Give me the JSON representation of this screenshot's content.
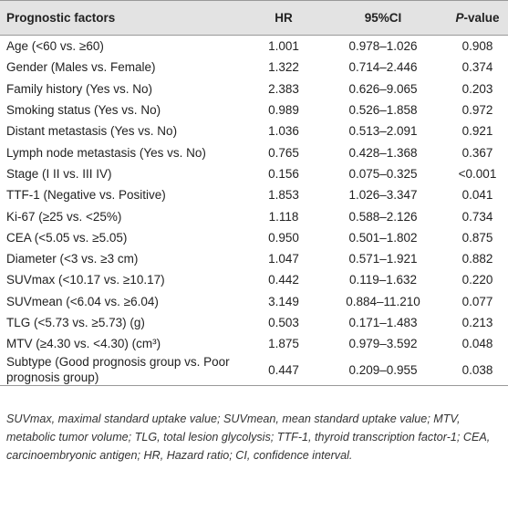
{
  "table": {
    "header": [
      "Prognostic factors",
      "HR",
      "95%CI",
      [
        "P",
        "-value"
      ]
    ],
    "rows": [
      [
        "Age (<60 vs. ≥60)",
        "1.001",
        "0.978–1.026",
        "0.908"
      ],
      [
        "Gender (Males vs. Female)",
        "1.322",
        "0.714–2.446",
        "0.374"
      ],
      [
        "Family history (Yes vs. No)",
        "2.383",
        "0.626–9.065",
        "0.203"
      ],
      [
        "Smoking status (Yes vs. No)",
        "0.989",
        "0.526–1.858",
        "0.972"
      ],
      [
        "Distant metastasis (Yes vs. No)",
        "1.036",
        "0.513–2.091",
        "0.921"
      ],
      [
        "Lymph node metastasis (Yes vs. No)",
        "0.765",
        "0.428–1.368",
        "0.367"
      ],
      [
        "Stage (I II vs. III IV)",
        "0.156",
        "0.075–0.325",
        "<0.001"
      ],
      [
        "TTF-1 (Negative vs. Positive)",
        "1.853",
        "1.026–3.347",
        "0.041"
      ],
      [
        "Ki-67 (≥25 vs. <25%)",
        "1.118",
        "0.588–2.126",
        "0.734"
      ],
      [
        "CEA (<5.05 vs. ≥5.05)",
        "0.950",
        "0.501–1.802",
        "0.875"
      ],
      [
        "Diameter (<3 vs. ≥3 cm)",
        "1.047",
        "0.571–1.921",
        "0.882"
      ],
      [
        "SUVmax (<10.17 vs. ≥10.17)",
        "0.442",
        "0.119–1.632",
        "0.220"
      ],
      [
        "SUVmean (<6.04 vs. ≥6.04)",
        "3.149",
        "0.884–11.210",
        "0.077"
      ],
      [
        "TLG (<5.73 vs. ≥5.73) (g)",
        "0.503",
        "0.171–1.483",
        "0.213"
      ],
      [
        "MTV (≥4.30 vs. <4.30) (cm³)",
        "1.875",
        "0.979–3.592",
        "0.048"
      ],
      [
        "Subtype (Good prognosis group vs. Poor prognosis group)",
        "0.447",
        "0.209–0.955",
        "0.038"
      ]
    ],
    "footnote": "SUVmax, maximal standard uptake value; SUVmean, mean standard uptake value; MTV, metabolic tumor volume; TLG, total lesion glycolysis; TTF-1, thyroid transcription factor-1; CEA, carcinoembryonic antigen; HR, Hazard ratio; CI, confidence interval."
  }
}
